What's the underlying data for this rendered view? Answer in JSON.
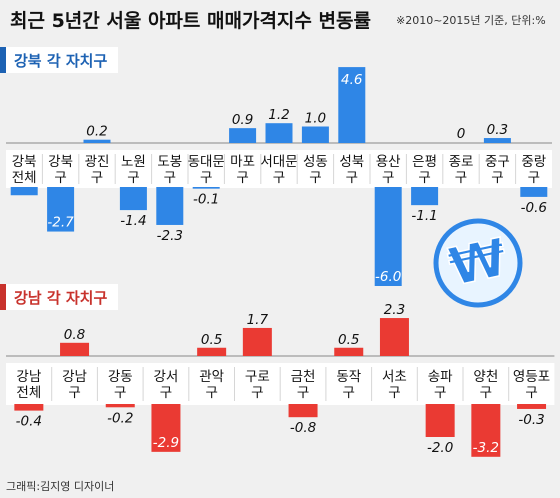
{
  "title": "최근 5년간 서울 아파트 매매가격지수 변동률",
  "subtitle": "※2010~2015년 기준, 단위:%",
  "credit": "그래픽:김지영 디자이너",
  "colors": {
    "north": "#2f86e6",
    "south": "#ea3a33",
    "north_header": "#1d62b3",
    "south_header": "#c8322c"
  },
  "chart_data": [
    {
      "type": "bar",
      "title": "강북 각 자치구",
      "categories": [
        "강북\n전체",
        "강북\n구",
        "광진\n구",
        "노원\n구",
        "도봉\n구",
        "동대문\n구",
        "마포\n구",
        "서대문\n구",
        "성동\n구",
        "성북\n구",
        "용산\n구",
        "은평\n구",
        "종로\n구",
        "중구\n구",
        "중랑\n구"
      ],
      "values": [
        -0.5,
        -2.7,
        0.2,
        -1.4,
        -2.3,
        -0.1,
        0.9,
        1.2,
        1.0,
        4.6,
        -6.0,
        -1.1,
        0,
        0.3,
        -0.6
      ],
      "labels": [
        "",
        "-2.7",
        "0.2",
        "-1.4",
        "-2.3",
        "-0.1",
        "0.9",
        "1.2",
        "1.0",
        "4.6",
        "-6.0",
        "-1.1",
        "0",
        "0.3",
        "-0.6"
      ]
    },
    {
      "type": "bar",
      "title": "강남 각 자치구",
      "categories": [
        "강남\n전체",
        "강남\n구",
        "강동\n구",
        "강서\n구",
        "관악\n구",
        "구로\n구",
        "금천\n구",
        "동작\n구",
        "서초\n구",
        "송파\n구",
        "양천\n구",
        "영등포\n구"
      ],
      "values": [
        -0.4,
        0.8,
        -0.2,
        -2.9,
        0.5,
        1.7,
        -0.8,
        0.5,
        2.3,
        -2.0,
        -3.2,
        -0.3
      ],
      "labels": [
        "-0.4",
        "0.8",
        "-0.2",
        "-2.9",
        "0.5",
        "1.7",
        "-0.8",
        "0.5",
        "2.3",
        "-2.0",
        "-3.2",
        "-0.3"
      ]
    }
  ]
}
